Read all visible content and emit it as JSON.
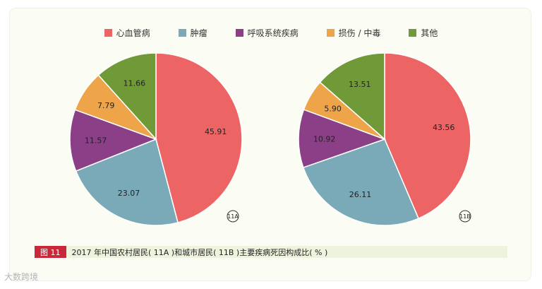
{
  "legend": [
    {
      "label": "心血管病",
      "color": "#ec6464"
    },
    {
      "label": "肿瘤",
      "color": "#7aaab8"
    },
    {
      "label": "呼吸系统疾病",
      "color": "#8a3f86"
    },
    {
      "label": "损伤 / 中毒",
      "color": "#eea449"
    },
    {
      "label": "其他",
      "color": "#6f9a37"
    }
  ],
  "caption": {
    "tag": "图 11",
    "text": "2017 年中国农村居民( 11A )和城市居民( 11B )主要疾病死因构成比( % )"
  },
  "watermark": "大数跨境",
  "chart_data": [
    {
      "type": "pie",
      "panel_label": "11A",
      "categories": [
        "心血管病",
        "肿瘤",
        "呼吸系统疾病",
        "损伤 / 中毒",
        "其他"
      ],
      "values": [
        45.91,
        23.07,
        11.57,
        7.79,
        11.66
      ],
      "colors": [
        "#ec6464",
        "#7aaab8",
        "#8a3f86",
        "#eea449",
        "#6f9a37"
      ],
      "start_angle": 0,
      "direction": "clockwise",
      "legend_position": "top"
    },
    {
      "type": "pie",
      "panel_label": "11B",
      "categories": [
        "心血管病",
        "肿瘤",
        "呼吸系统疾病",
        "损伤 / 中毒",
        "其他"
      ],
      "values": [
        43.56,
        26.11,
        10.92,
        5.9,
        13.51
      ],
      "colors": [
        "#ec6464",
        "#7aaab8",
        "#8a3f86",
        "#eea449",
        "#6f9a37"
      ],
      "start_angle": 0,
      "direction": "clockwise",
      "legend_position": "top"
    }
  ]
}
